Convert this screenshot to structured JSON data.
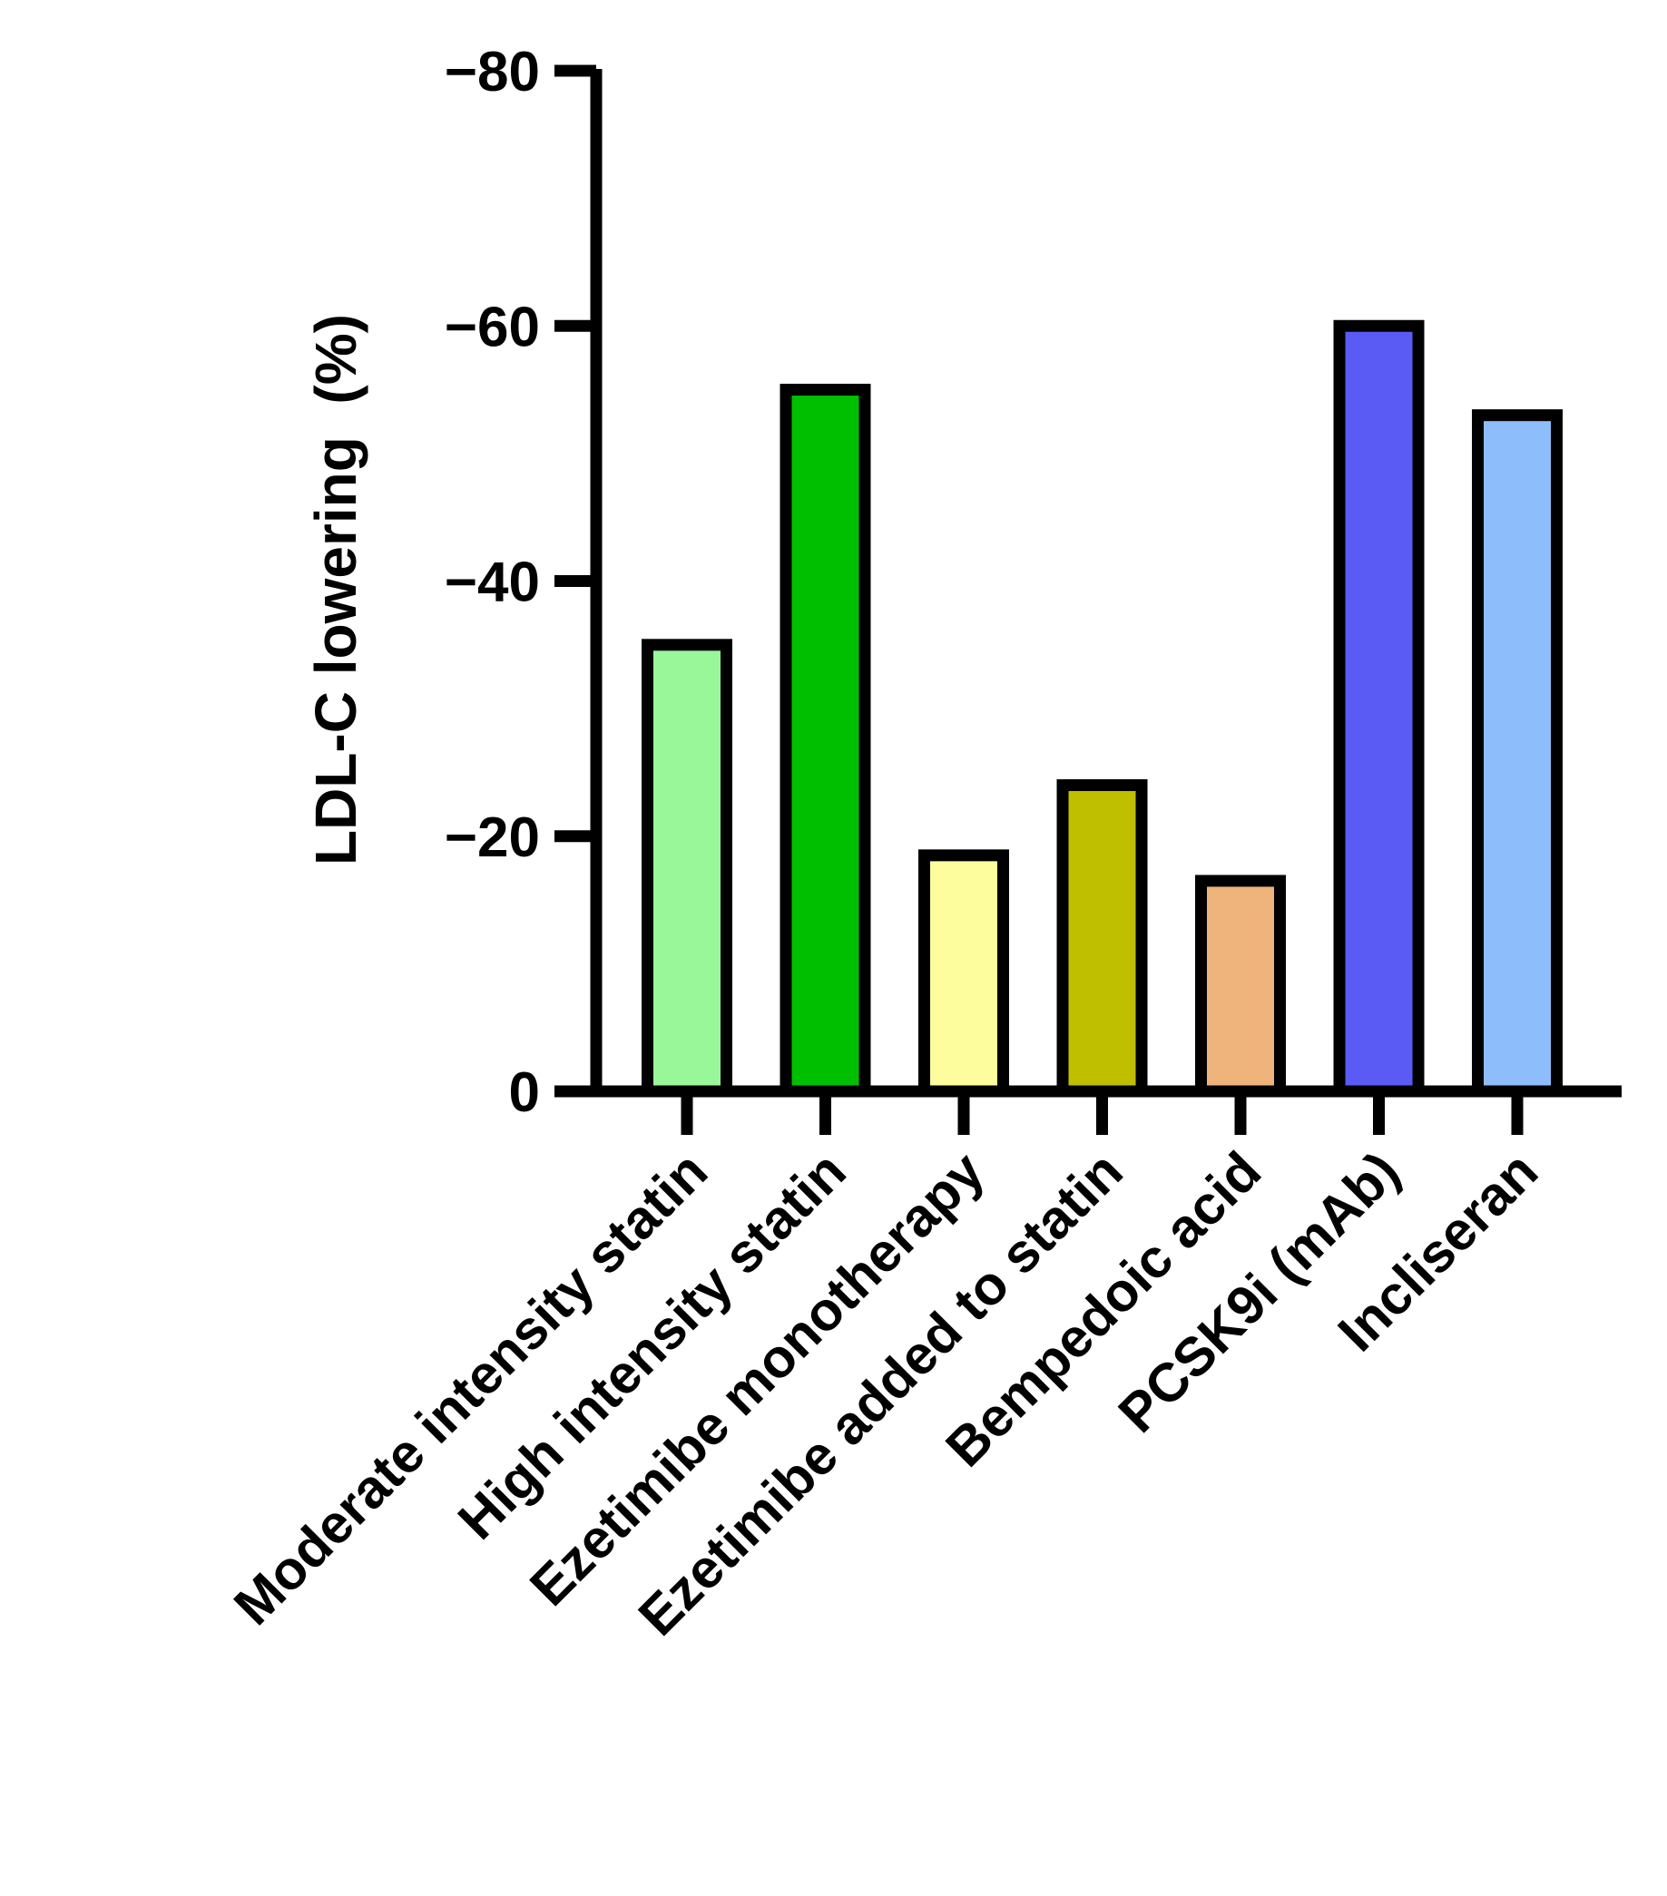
{
  "chart_data": {
    "type": "bar",
    "title": "",
    "xlabel": "",
    "ylabel": "LDL-C lowering  (%)",
    "ylim": [
      0,
      -80
    ],
    "yticks": [
      {
        "value": -80,
        "label": "−80"
      },
      {
        "value": -60,
        "label": "−60"
      },
      {
        "value": -40,
        "label": "−40"
      },
      {
        "value": -20,
        "label": "−20"
      },
      {
        "value": 0,
        "label": "0"
      }
    ],
    "grid": false,
    "legend": "none",
    "categories": [
      "Moderate intensity statin",
      "High intensity statin",
      "Ezetimibe monotherapy",
      "Ezetimibe added to statin",
      "Bempedoic acid",
      "PCSK9i (mAb)",
      "Incliseran"
    ],
    "values": [
      -35,
      -55,
      -18.5,
      -24,
      -16.5,
      -60,
      -53
    ],
    "colors": [
      "#99f79a",
      "#00bf00",
      "#fdfd9d",
      "#bfbf00",
      "#efb47c",
      "#5a5af5",
      "#8ebdfc"
    ],
    "bar_border_color": "#000000"
  }
}
